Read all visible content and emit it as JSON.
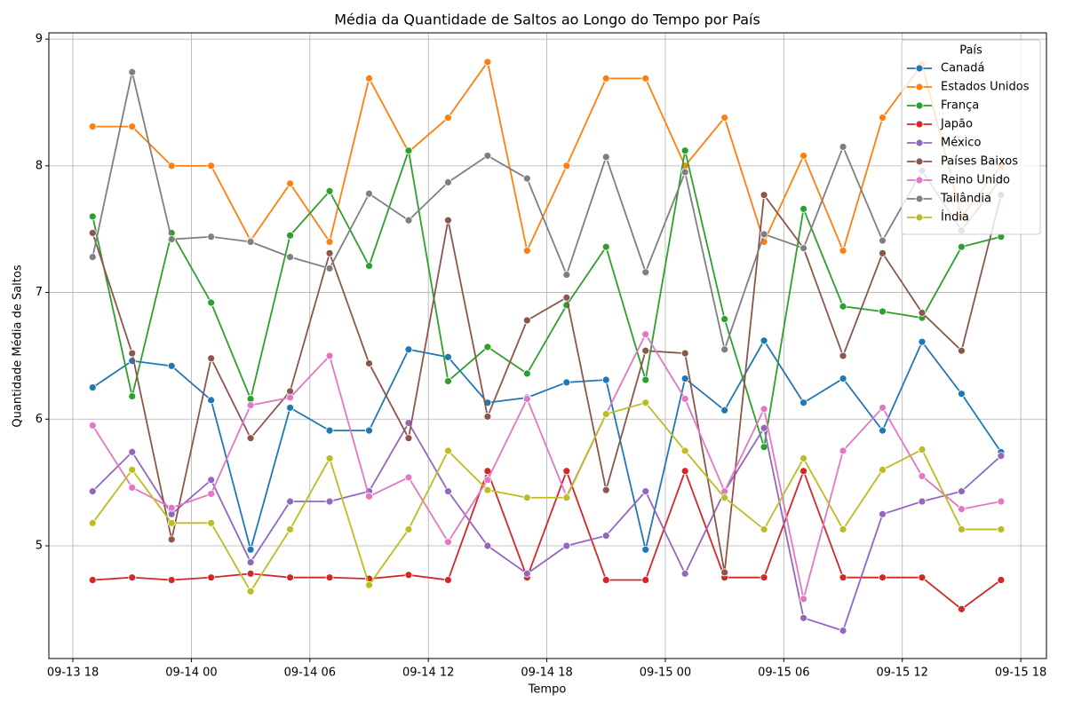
{
  "chart_data": {
    "type": "line",
    "title": "Média da Quantidade de Saltos ao Longo do Tempo por País",
    "x_label": "Tempo",
    "y_label": "Quantidade Média de Saltos",
    "legend_title": "País",
    "legend": "upper right",
    "grid": true,
    "x": [
      "09-13 19",
      "09-13 21",
      "09-13 23",
      "09-14 01",
      "09-14 03",
      "09-14 05",
      "09-14 07",
      "09-14 09",
      "09-14 11",
      "09-14 13",
      "09-14 15",
      "09-14 17",
      "09-14 19",
      "09-14 21",
      "09-14 23",
      "09-15 01",
      "09-15 03",
      "09-15 05",
      "09-15 07",
      "09-15 09",
      "09-15 11",
      "09-15 13",
      "09-15 15",
      "09-15 17"
    ],
    "xlim": [
      "09-13 16:47",
      "09-15 19:18"
    ],
    "xticks": [
      "09-13 18",
      "09-14 00",
      "09-14 06",
      "09-14 12",
      "09-14 18",
      "09-15 00",
      "09-15 06",
      "09-15 12",
      "09-15 18"
    ],
    "ylim": [
      4.11,
      9.05
    ],
    "yticks": [
      5,
      6,
      7,
      8,
      9
    ],
    "series": [
      {
        "name": "Canadá",
        "color": "#1f77b4",
        "values": [
          6.25,
          6.46,
          6.42,
          6.15,
          4.97,
          6.09,
          5.91,
          5.91,
          6.55,
          6.49,
          6.13,
          6.17,
          6.29,
          6.31,
          4.97,
          6.32,
          6.07,
          6.62,
          6.13,
          6.32,
          5.91,
          6.61,
          6.2,
          5.74
        ]
      },
      {
        "name": "Estados Unidos",
        "color": "#ff7f0e",
        "values": [
          8.31,
          8.31,
          8.0,
          8.0,
          7.41,
          7.86,
          7.4,
          8.69,
          8.11,
          8.38,
          8.82,
          7.33,
          8.0,
          8.69,
          8.69,
          8.0,
          8.38,
          7.4,
          8.08,
          7.33,
          8.38,
          8.8,
          7.6,
          8.0
        ]
      },
      {
        "name": "França",
        "color": "#2ca02c",
        "values": [
          7.6,
          6.18,
          7.47,
          6.92,
          6.16,
          7.45,
          7.8,
          7.21,
          8.12,
          6.3,
          6.57,
          6.36,
          6.9,
          7.36,
          6.31,
          8.12,
          6.79,
          5.78,
          7.66,
          6.89,
          6.85,
          6.8,
          7.36,
          7.44
        ]
      },
      {
        "name": "Japão",
        "color": "#d62728",
        "values": [
          4.73,
          4.75,
          4.73,
          4.75,
          4.78,
          4.75,
          4.75,
          4.74,
          4.77,
          4.73,
          5.59,
          4.75,
          5.59,
          4.73,
          4.73,
          5.59,
          4.75,
          4.75,
          5.59,
          4.75,
          4.75,
          4.75,
          4.5,
          4.73
        ]
      },
      {
        "name": "México",
        "color": "#9467bd",
        "values": [
          5.43,
          5.74,
          5.25,
          5.52,
          4.87,
          5.35,
          5.35,
          5.43,
          5.97,
          5.43,
          5.0,
          4.78,
          5.0,
          5.08,
          5.43,
          4.78,
          5.43,
          5.93,
          4.43,
          4.33,
          5.25,
          5.35,
          5.43,
          5.71
        ]
      },
      {
        "name": "Países Baixos",
        "color": "#8c564b",
        "values": [
          7.47,
          6.52,
          5.05,
          6.48,
          5.85,
          6.22,
          7.31,
          6.44,
          5.85,
          7.57,
          6.02,
          6.78,
          6.96,
          5.44,
          6.54,
          6.52,
          4.79,
          7.77,
          7.35,
          6.5,
          7.31,
          6.84,
          6.54,
          7.77
        ]
      },
      {
        "name": "Reino Unido",
        "color": "#e377c2",
        "values": [
          5.95,
          5.46,
          5.3,
          5.41,
          6.11,
          6.17,
          6.5,
          5.39,
          5.54,
          5.03,
          5.52,
          6.16,
          5.39,
          6.04,
          6.67,
          6.16,
          5.43,
          6.08,
          4.58,
          5.75,
          6.09,
          5.55,
          5.29,
          5.35
        ]
      },
      {
        "name": "Tailândia",
        "color": "#7f7f7f",
        "values": [
          7.28,
          8.74,
          7.42,
          7.44,
          7.4,
          7.28,
          7.19,
          7.78,
          7.57,
          7.87,
          8.08,
          7.9,
          7.14,
          8.07,
          7.16,
          7.95,
          6.55,
          7.46,
          7.35,
          8.15,
          7.41,
          7.96,
          7.49,
          7.9
        ]
      },
      {
        "name": "Índia",
        "color": "#bcbd22",
        "values": [
          5.18,
          5.6,
          5.18,
          5.18,
          4.64,
          5.13,
          5.69,
          4.69,
          5.13,
          5.75,
          5.44,
          5.38,
          5.38,
          6.04,
          6.13,
          5.75,
          5.38,
          5.13,
          5.69,
          5.13,
          5.6,
          5.76,
          5.13,
          5.13
        ]
      }
    ]
  }
}
